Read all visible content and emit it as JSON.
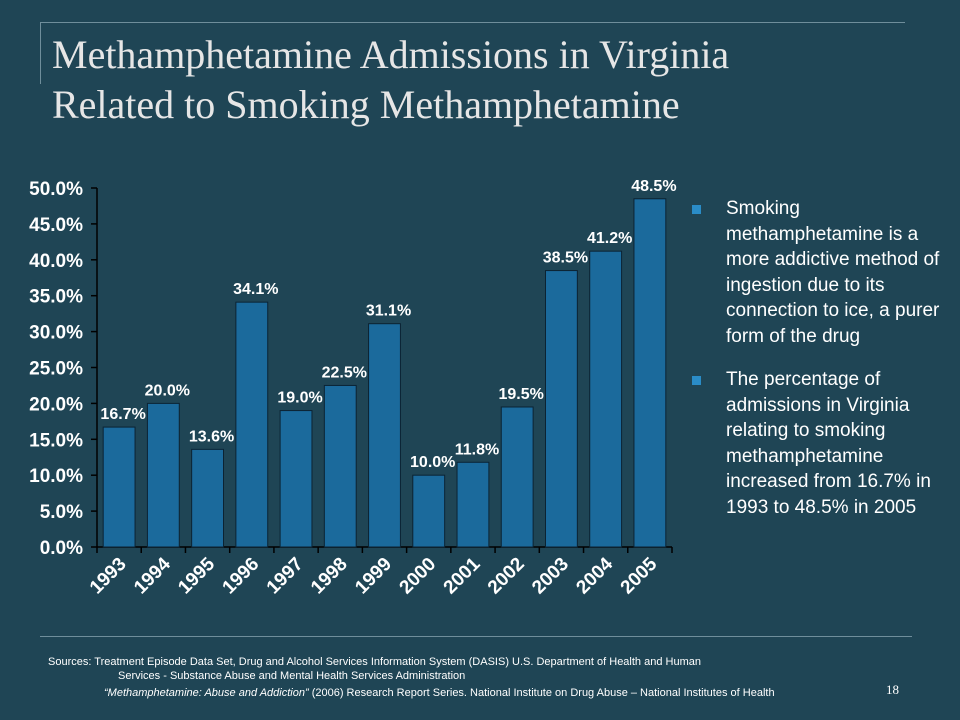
{
  "slide": {
    "title_line1": "Methamphetamine Admissions in Virginia",
    "title_line2": "Related to Smoking Methamphetamine",
    "page_number": "18"
  },
  "bullets": [
    "Smoking methamphetamine is a more addictive method of ingestion due to its connection to ice, a purer form of the drug",
    "The percentage of admissions in Virginia relating to smoking methamphetamine increased from 16.7% in 1993 to 48.5% in 2005"
  ],
  "sources": {
    "line1": "Sources: Treatment Episode Data Set, Drug and Alcohol Services Information System (DASIS) U.S. Department of Health and Human",
    "line2": "Services - Substance Abuse and Mental Health Services Administration",
    "quote": "“Methamphetamine:  Abuse and Addiction”",
    "line3_rest": " (2006) Research Report Series. National Institute on Drug Abuse – National Institutes of Health"
  },
  "colors": {
    "background": "#1f4555",
    "bar_fill": "#1b6a9c",
    "bar_stroke": "#0b2333",
    "bullet": "#2a8cc7"
  },
  "chart_data": {
    "type": "bar",
    "categories": [
      "1993",
      "1994",
      "1995",
      "1996",
      "1997",
      "1998",
      "1999",
      "2000",
      "2001",
      "2002",
      "2003",
      "2004",
      "2005"
    ],
    "values": [
      16.7,
      20.0,
      13.6,
      34.1,
      19.0,
      22.5,
      31.1,
      10.0,
      11.8,
      19.5,
      38.5,
      41.2,
      48.5
    ],
    "data_labels": [
      "16.7%",
      "20.0%",
      "13.6%",
      "34.1%",
      "19.0%",
      "22.5%",
      "31.1%",
      "10.0%",
      "11.8%",
      "19.5%",
      "38.5%",
      "41.2%",
      "48.5%"
    ],
    "y_ticks": [
      "0.0%",
      "5.0%",
      "10.0%",
      "15.0%",
      "20.0%",
      "25.0%",
      "30.0%",
      "35.0%",
      "40.0%",
      "45.0%",
      "50.0%"
    ],
    "ylim": [
      0,
      50
    ],
    "title": "",
    "xlabel": "",
    "ylabel": "",
    "grid": false,
    "legend": "none"
  }
}
